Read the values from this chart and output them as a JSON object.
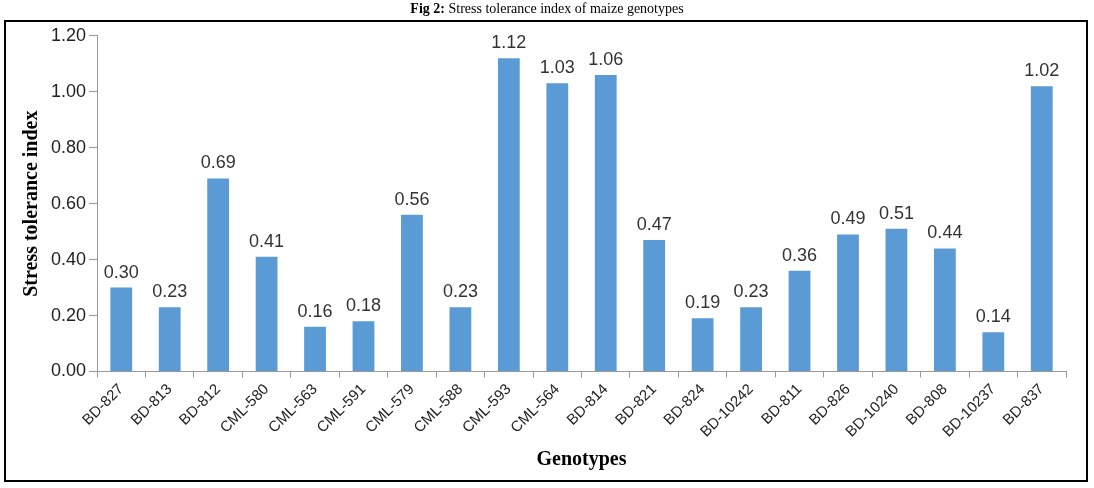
{
  "chart_data": {
    "type": "bar",
    "title": "Fig 2: Stress tolerance index of maize genotypes",
    "xlabel": "Genotypes",
    "ylabel": "Stress tolerance index",
    "categories": [
      "BD-827",
      "BD-813",
      "BD-812",
      "CML-580",
      "CML-563",
      "CML-591",
      "CML-579",
      "CML-588",
      "CML-593",
      "CML-564",
      "BD-814",
      "BD-821",
      "BD-824",
      "BD-10242",
      "BD-811",
      "BD-826",
      "BD-10240",
      "BD-808",
      "BD-10237",
      "BD-837"
    ],
    "values": [
      0.3,
      0.23,
      0.69,
      0.41,
      0.16,
      0.18,
      0.56,
      0.23,
      1.12,
      1.03,
      1.06,
      0.47,
      0.19,
      0.23,
      0.36,
      0.49,
      0.51,
      0.44,
      0.14,
      1.02
    ],
    "value_labels": [
      "0.30",
      "0.23",
      "0.69",
      "0.41",
      "0.16",
      "0.18",
      "0.56",
      "0.23",
      "1.12",
      "1.03",
      "1.06",
      "0.47",
      "0.19",
      "0.23",
      "0.36",
      "0.49",
      "0.51",
      "0.44",
      "0.14",
      "1.02"
    ],
    "color": "#5b9bd5",
    "ylim": [
      0,
      1.2
    ],
    "yticks": [
      {
        "value": 0,
        "label": "0.00"
      },
      {
        "value": 0.2,
        "label": "0.20"
      },
      {
        "value": 0.4,
        "label": "0.40"
      },
      {
        "value": 0.6,
        "label": "0.60"
      },
      {
        "value": 0.8,
        "label": "0.80"
      },
      {
        "value": 1,
        "label": "1.00"
      },
      {
        "value": 1.2,
        "label": "1.20"
      }
    ],
    "grid": false,
    "legend": false
  }
}
